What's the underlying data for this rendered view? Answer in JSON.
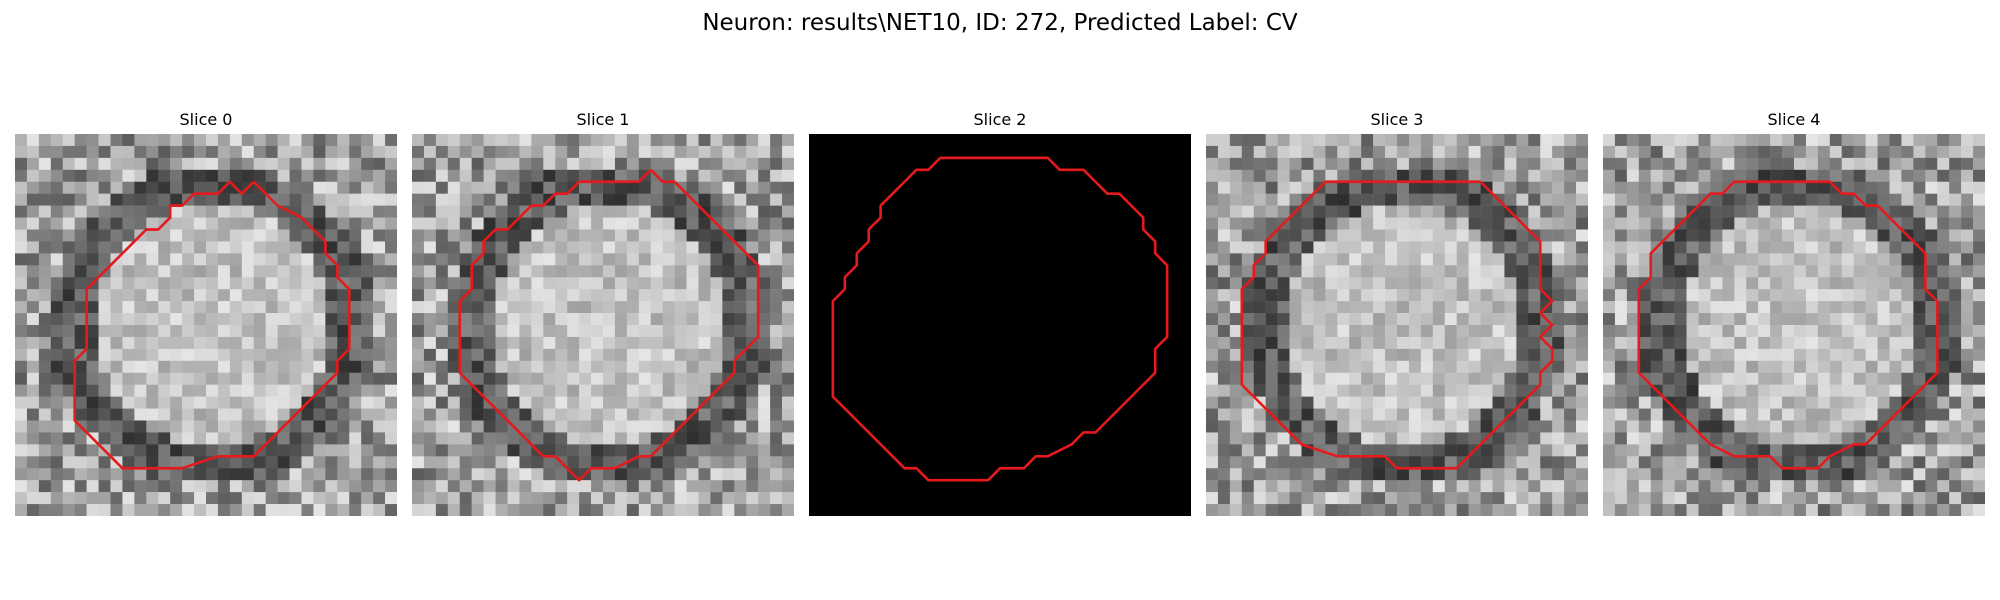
{
  "figure": {
    "title": "Neuron: results\\NET10, ID: 272, Predicted Label: CV",
    "contour_color": "#e41a1c",
    "colormap": "gray"
  },
  "slices": [
    {
      "title": "Slice 0",
      "image": "grayscale-patch",
      "contour": "red-outline"
    },
    {
      "title": "Slice 1",
      "image": "grayscale-patch",
      "contour": "red-outline"
    },
    {
      "title": "Slice 2",
      "image": "black-patch",
      "contour": "red-outline"
    },
    {
      "title": "Slice 3",
      "image": "grayscale-patch",
      "contour": "red-outline"
    },
    {
      "title": "Slice 4",
      "image": "grayscale-patch",
      "contour": "red-outline"
    }
  ]
}
